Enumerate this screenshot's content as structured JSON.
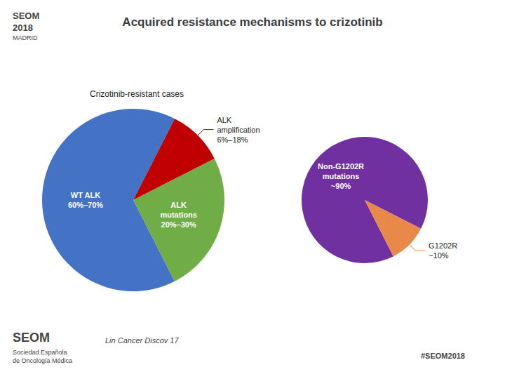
{
  "chart_data": [
    {
      "type": "pie",
      "title": "Acquired resistance mechanisms to crizotinib",
      "subtitle": "Crizotinib-resistant cases",
      "categories": [
        "WT ALK\n60%–70%",
        "ALK\namplification\n6%–18%",
        "ALK\nmutations\n20%–30%"
      ],
      "values": [
        65,
        10,
        25
      ],
      "colors": [
        "#4472C4",
        "#C00000",
        "#70AD47"
      ],
      "annotations": [
        "SEOM",
        "2018",
        "MADRID",
        "Lin Cancer Discov 17",
        "SEOM",
        "Sociedad Española\nde Oncología Médica",
        "#SEOM2018"
      ]
    },
    {
      "type": "pie",
      "categories": [
        "Non-G1202R\nmutations\n~90%",
        "G1202R\n~10%"
      ],
      "values": [
        90,
        10
      ],
      "colors": [
        "#7030A0",
        "#E8894A"
      ]
    }
  ]
}
